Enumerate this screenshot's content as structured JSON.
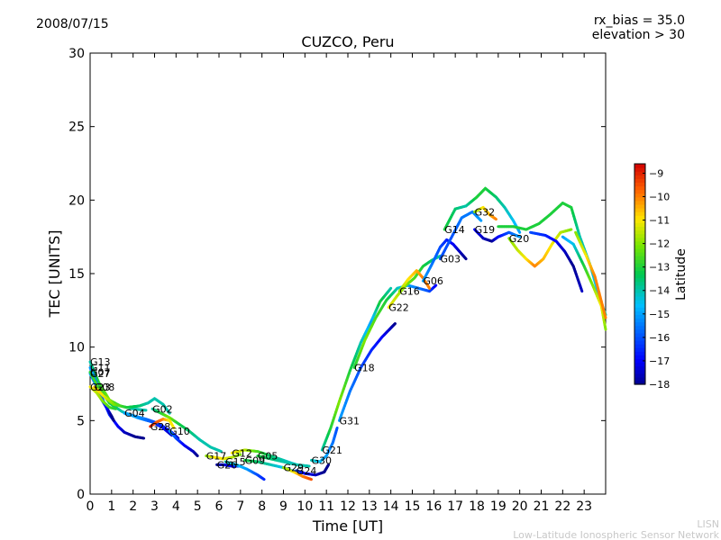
{
  "header": {
    "date": "2008/07/15",
    "rx_bias": "rx_bias = 35.0",
    "elevation": "elevation > 30"
  },
  "footer": {
    "line1": "LISN",
    "line2": "Low-Latitude Ionospheric Sensor Network"
  },
  "chart_data": {
    "type": "scatter",
    "title": "CUZCO, Peru",
    "xlabel": "Time [UT]",
    "ylabel": "TEC [UNITS]",
    "xlim": [
      0,
      24
    ],
    "ylim": [
      0,
      30
    ],
    "xticks": [
      0,
      1,
      2,
      3,
      4,
      5,
      6,
      7,
      8,
      9,
      10,
      11,
      12,
      13,
      14,
      15,
      16,
      17,
      18,
      19,
      20,
      21,
      22,
      23
    ],
    "yticks": [
      0,
      5,
      10,
      15,
      20,
      25,
      30
    ],
    "colorbar": {
      "label": "Latitude",
      "range": [
        -18,
        -8.6
      ],
      "ticks": [
        -9,
        -10,
        -11,
        -12,
        -13,
        -14,
        -15,
        -16,
        -17,
        -18
      ]
    },
    "series": [
      {
        "name": "G13",
        "points": [
          [
            0.0,
            9.0,
            -14
          ],
          [
            0.4,
            7.6,
            -13
          ],
          [
            0.9,
            6.4,
            -12
          ],
          [
            1.4,
            6.0,
            -13
          ],
          [
            2.0,
            5.8,
            -14
          ],
          [
            2.6,
            5.7,
            -14
          ]
        ]
      },
      {
        "name": "G11",
        "points": [
          [
            0.0,
            8.6,
            -15
          ],
          [
            0.3,
            7.6,
            -15.5
          ],
          [
            0.6,
            6.4,
            -16
          ],
          [
            0.9,
            5.4,
            -16.5
          ],
          [
            1.3,
            4.6,
            -17
          ],
          [
            1.6,
            4.2,
            -17.5
          ],
          [
            2.1,
            3.9,
            -18
          ],
          [
            2.5,
            3.8,
            -18
          ]
        ]
      },
      {
        "name": "G27",
        "points": [
          [
            0.0,
            8.2,
            -15
          ],
          [
            0.3,
            7.3,
            -15.5
          ],
          [
            0.5,
            6.5,
            -16
          ],
          [
            0.8,
            5.8,
            -17
          ],
          [
            1.0,
            5.3,
            -18
          ],
          [
            1.1,
            5.0,
            -18
          ]
        ]
      },
      {
        "name": "G07",
        "points": [
          [
            0.0,
            8.3,
            -13
          ],
          [
            0.4,
            7.2,
            -12.5
          ],
          [
            0.9,
            6.2,
            -13
          ],
          [
            1.5,
            5.6,
            -14
          ],
          [
            2.2,
            5.2,
            -15
          ],
          [
            2.9,
            4.9,
            -16
          ],
          [
            3.4,
            4.5,
            -17
          ],
          [
            3.8,
            4.0,
            -17.5
          ]
        ]
      },
      {
        "name": "G23",
        "points": [
          [
            0.0,
            7.3,
            -11
          ],
          [
            0.3,
            6.9,
            -11.5
          ],
          [
            0.6,
            6.3,
            -12
          ],
          [
            0.9,
            5.9,
            -12.5
          ],
          [
            1.2,
            5.8,
            -13
          ]
        ]
      },
      {
        "name": "G08",
        "points": [
          [
            0.2,
            7.3,
            -10.5
          ],
          [
            0.6,
            6.7,
            -11
          ],
          [
            1.1,
            6.1,
            -12
          ],
          [
            1.7,
            5.9,
            -13
          ],
          [
            2.3,
            6.0,
            -13.5
          ],
          [
            2.7,
            6.2,
            -14
          ],
          [
            3.0,
            6.5,
            -14
          ],
          [
            3.4,
            6.1,
            -14
          ],
          [
            3.7,
            5.5,
            -14
          ]
        ]
      },
      {
        "name": "G04",
        "points": [
          [
            1.6,
            5.5,
            -15
          ],
          [
            2.1,
            5.3,
            -15
          ],
          [
            2.6,
            5.1,
            -15.5
          ],
          [
            3.0,
            4.9,
            -16
          ],
          [
            3.4,
            4.6,
            -16.5
          ],
          [
            3.8,
            4.2,
            -17
          ],
          [
            4.1,
            3.8,
            -17.5
          ]
        ]
      },
      {
        "name": "G02",
        "points": [
          [
            2.9,
            5.8,
            -14
          ],
          [
            3.3,
            5.5,
            -13
          ],
          [
            3.7,
            5.2,
            -12
          ],
          [
            4.1,
            4.8,
            -13
          ],
          [
            4.6,
            4.3,
            -13.5
          ],
          [
            5.1,
            3.7,
            -14
          ],
          [
            5.6,
            3.2,
            -14
          ],
          [
            6.1,
            2.9,
            -14
          ]
        ]
      },
      {
        "name": "G28",
        "points": [
          [
            2.8,
            4.6,
            -9
          ],
          [
            3.1,
            4.9,
            -9.5
          ],
          [
            3.4,
            5.1,
            -10
          ],
          [
            3.7,
            5.0,
            -11
          ],
          [
            3.9,
            4.5,
            -11
          ]
        ]
      },
      {
        "name": "G10",
        "points": [
          [
            3.7,
            4.3,
            -15
          ],
          [
            4.0,
            3.8,
            -16
          ],
          [
            4.4,
            3.3,
            -17
          ],
          [
            4.8,
            2.9,
            -17.5
          ],
          [
            5.0,
            2.6,
            -18
          ]
        ]
      },
      {
        "name": "G17",
        "points": [
          [
            5.4,
            2.6,
            -12
          ],
          [
            5.8,
            2.5,
            -11
          ],
          [
            6.2,
            2.4,
            -11
          ],
          [
            6.6,
            2.5,
            -11.5
          ],
          [
            7.0,
            2.7,
            -12
          ]
        ]
      },
      {
        "name": "G26",
        "points": [
          [
            5.9,
            2.0,
            -18
          ],
          [
            6.2,
            2.0,
            -17.5
          ],
          [
            6.6,
            1.9,
            -17
          ],
          [
            7.0,
            1.9,
            -16.5
          ]
        ]
      },
      {
        "name": "G15",
        "points": [
          [
            6.3,
            2.2,
            -14
          ],
          [
            6.8,
            2.0,
            -14.5
          ],
          [
            7.3,
            1.7,
            -15
          ],
          [
            7.8,
            1.3,
            -16
          ],
          [
            8.1,
            1.0,
            -16.5
          ]
        ]
      },
      {
        "name": "G12",
        "points": [
          [
            6.6,
            2.8,
            -11
          ],
          [
            7.2,
            3.0,
            -11.5
          ],
          [
            7.8,
            2.9,
            -12.5
          ],
          [
            8.4,
            2.6,
            -13.5
          ],
          [
            9.0,
            2.3,
            -14
          ],
          [
            9.6,
            2.0,
            -14.5
          ]
        ]
      },
      {
        "name": "G05",
        "points": [
          [
            7.8,
            2.6,
            -13
          ],
          [
            8.4,
            2.4,
            -13.5
          ],
          [
            9.0,
            2.2,
            -14
          ],
          [
            9.6,
            2.0,
            -14
          ],
          [
            10.2,
            1.9,
            -14
          ]
        ]
      },
      {
        "name": "G09",
        "points": [
          [
            7.2,
            2.3,
            -13
          ],
          [
            7.8,
            2.2,
            -13.5
          ],
          [
            8.4,
            2.0,
            -14
          ],
          [
            9.0,
            1.8,
            -14.5
          ],
          [
            9.6,
            1.5,
            -15
          ]
        ]
      },
      {
        "name": "G29",
        "points": [
          [
            9.0,
            1.8,
            -12
          ],
          [
            9.5,
            1.5,
            -11
          ],
          [
            9.9,
            1.2,
            -10
          ],
          [
            10.3,
            1.0,
            -9.5
          ]
        ]
      },
      {
        "name": "G24",
        "points": [
          [
            9.6,
            1.6,
            -16
          ],
          [
            10.0,
            1.4,
            -17
          ],
          [
            10.5,
            1.3,
            -17.5
          ],
          [
            10.9,
            1.5,
            -18
          ],
          [
            11.1,
            2.0,
            -18
          ]
        ]
      },
      {
        "name": "G30",
        "points": [
          [
            10.3,
            2.3,
            -14
          ],
          [
            10.7,
            2.2,
            -14.5
          ],
          [
            11.0,
            2.6,
            -15
          ],
          [
            11.3,
            3.5,
            -15.5
          ],
          [
            11.5,
            4.5,
            -16
          ]
        ]
      },
      {
        "name": "G21",
        "points": [
          [
            10.8,
            3.0,
            -14
          ],
          [
            11.2,
            4.5,
            -13
          ],
          [
            11.6,
            6.3,
            -12
          ],
          [
            12.1,
            8.4,
            -13
          ],
          [
            12.6,
            10.3,
            -14
          ],
          [
            13.1,
            11.8,
            -15
          ],
          [
            13.5,
            13.1,
            -13
          ],
          [
            14.0,
            14.0,
            -14
          ]
        ]
      },
      {
        "name": "G31",
        "points": [
          [
            11.6,
            5.0,
            -15
          ],
          [
            12.1,
            7.0,
            -15.5
          ],
          [
            12.6,
            8.6,
            -16
          ],
          [
            13.1,
            9.8,
            -16.5
          ],
          [
            13.6,
            10.7,
            -17
          ],
          [
            14.0,
            11.3,
            -17.5
          ],
          [
            14.2,
            11.6,
            -18
          ]
        ]
      },
      {
        "name": "G18",
        "points": [
          [
            12.3,
            8.6,
            -13
          ],
          [
            12.8,
            10.5,
            -12
          ],
          [
            13.3,
            12.0,
            -12.5
          ],
          [
            13.8,
            13.2,
            -13
          ],
          [
            14.3,
            14.0,
            -14
          ],
          [
            14.8,
            14.2,
            -15
          ],
          [
            15.3,
            14.0,
            -15.5
          ],
          [
            15.8,
            13.8,
            -16
          ],
          [
            16.1,
            14.2,
            -17
          ]
        ]
      },
      {
        "name": "G22",
        "points": [
          [
            13.9,
            12.7,
            -11
          ],
          [
            14.3,
            13.5,
            -11.5
          ],
          [
            14.7,
            14.2,
            -12
          ],
          [
            15.1,
            14.7,
            -12.5
          ],
          [
            15.5,
            15.5,
            -13
          ],
          [
            15.9,
            15.9,
            -13.5
          ],
          [
            16.3,
            16.2,
            -14
          ]
        ]
      },
      {
        "name": "G16",
        "points": [
          [
            14.4,
            13.8,
            -12
          ],
          [
            14.8,
            14.6,
            -11
          ],
          [
            15.2,
            15.2,
            -10.5
          ],
          [
            15.5,
            14.7,
            -10
          ],
          [
            15.8,
            14.0,
            -10
          ]
        ]
      },
      {
        "name": "G06",
        "points": [
          [
            15.5,
            14.5,
            -15
          ],
          [
            15.9,
            15.6,
            -15.5
          ],
          [
            16.3,
            16.8,
            -16
          ],
          [
            16.6,
            17.3,
            -16.5
          ],
          [
            16.9,
            17.0,
            -17
          ],
          [
            17.2,
            16.5,
            -17.5
          ],
          [
            17.5,
            16.0,
            -18
          ]
        ]
      },
      {
        "name": "G03",
        "points": [
          [
            16.3,
            16.0,
            -16
          ],
          [
            16.8,
            17.4,
            -16
          ],
          [
            17.3,
            18.8,
            -15.5
          ],
          [
            17.8,
            19.2,
            -15.5
          ],
          [
            18.2,
            18.6,
            -15
          ]
        ]
      },
      {
        "name": "G14",
        "points": [
          [
            16.5,
            18.0,
            -13
          ],
          [
            17.0,
            19.4,
            -13.5
          ],
          [
            17.5,
            19.6,
            -14
          ],
          [
            18.0,
            20.2,
            -13
          ],
          [
            18.4,
            20.8,
            -13
          ],
          [
            18.9,
            20.2,
            -13.5
          ],
          [
            19.3,
            19.5,
            -14
          ],
          [
            19.7,
            18.6,
            -14.5
          ],
          [
            20.0,
            17.8,
            -15
          ]
        ]
      },
      {
        "name": "G32",
        "points": [
          [
            17.9,
            19.2,
            -12
          ],
          [
            18.3,
            19.5,
            -11
          ],
          [
            18.6,
            19.0,
            -10.5
          ],
          [
            18.9,
            18.7,
            -10
          ]
        ]
      },
      {
        "name": "G19",
        "points": [
          [
            17.9,
            18.0,
            -17
          ],
          [
            18.3,
            17.4,
            -17.5
          ],
          [
            18.7,
            17.2,
            -18
          ],
          [
            19.0,
            17.5,
            -17
          ],
          [
            19.5,
            17.8,
            -16
          ],
          [
            20.0,
            17.5,
            -15
          ]
        ]
      },
      {
        "name": "G20",
        "points": [
          [
            19.5,
            17.4,
            -12
          ],
          [
            19.9,
            16.6,
            -11.5
          ],
          [
            20.3,
            16.0,
            -11
          ],
          [
            20.7,
            15.5,
            -10
          ],
          [
            21.1,
            16.0,
            -10.5
          ],
          [
            21.5,
            17.0,
            -11
          ],
          [
            21.9,
            17.8,
            -11.5
          ],
          [
            22.4,
            18.0,
            -12
          ]
        ]
      },
      {
        "name": "",
        "points": [
          [
            19.0,
            18.2,
            -13
          ],
          [
            19.7,
            18.2,
            -13
          ],
          [
            20.3,
            18.0,
            -13
          ],
          [
            20.9,
            18.4,
            -13
          ],
          [
            21.4,
            19.0,
            -13
          ],
          [
            22.0,
            19.8,
            -13
          ],
          [
            22.4,
            19.5,
            -13
          ],
          [
            22.8,
            17.5,
            -14
          ],
          [
            23.3,
            15.5,
            -14
          ],
          [
            23.7,
            13.4,
            -15
          ],
          [
            24.0,
            12.2,
            -14
          ]
        ]
      },
      {
        "name": "",
        "points": [
          [
            20.5,
            17.8,
            -16
          ],
          [
            21.2,
            17.6,
            -16.5
          ],
          [
            21.7,
            17.2,
            -17
          ],
          [
            22.1,
            16.5,
            -17.5
          ],
          [
            22.5,
            15.5,
            -18
          ],
          [
            22.9,
            13.8,
            -17.5
          ]
        ]
      },
      {
        "name": "",
        "points": [
          [
            22.0,
            17.5,
            -15
          ],
          [
            22.5,
            17.0,
            -14.5
          ],
          [
            23.0,
            15.5,
            -13
          ],
          [
            23.4,
            14.2,
            -12
          ],
          [
            23.8,
            12.8,
            -11
          ],
          [
            24.0,
            11.2,
            -12
          ]
        ]
      },
      {
        "name": "",
        "points": [
          [
            22.6,
            17.8,
            -12
          ],
          [
            23.1,
            16.2,
            -11
          ],
          [
            23.5,
            14.8,
            -10
          ],
          [
            24.0,
            12.0,
            -10
          ]
        ]
      }
    ]
  }
}
